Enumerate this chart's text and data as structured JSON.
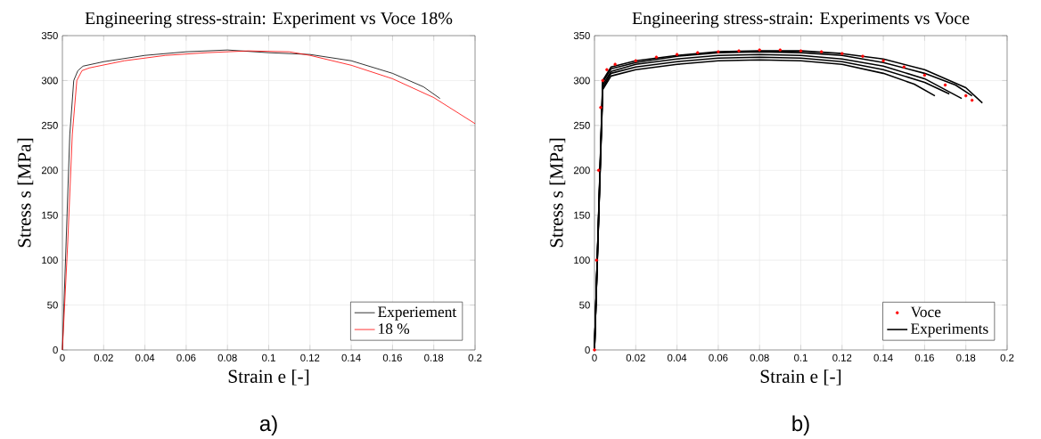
{
  "chart_data": [
    {
      "type": "line",
      "title": "Engineering stress-strain: Experiment vs Voce 18%",
      "xlabel": "Strain e [-]",
      "ylabel": "Stress s [MPa]",
      "xlim": [
        0,
        0.2
      ],
      "ylim": [
        0,
        350
      ],
      "xticks": [
        0,
        0.02,
        0.04,
        0.06,
        0.08,
        0.1,
        0.12,
        0.14,
        0.16,
        0.18,
        0.2
      ],
      "yticks": [
        0,
        50,
        100,
        150,
        200,
        250,
        300,
        350
      ],
      "grid": true,
      "legend": "bottom right",
      "annotations": [
        "a)"
      ],
      "series": [
        {
          "name": "Experiement",
          "color": "#000000",
          "x": [
            0,
            0.0018,
            0.0036,
            0.0055,
            0.0075,
            0.01,
            0.02,
            0.04,
            0.06,
            0.08,
            0.1,
            0.12,
            0.14,
            0.16,
            0.175,
            0.183
          ],
          "values": [
            0,
            120,
            240,
            300,
            311,
            316,
            321,
            328,
            332,
            334,
            331,
            329,
            322,
            308,
            293,
            280
          ]
        },
        {
          "name": "18 %",
          "color": "#ff0000",
          "x": [
            0,
            0.0026,
            0.0048,
            0.007,
            0.0095,
            0.013,
            0.03,
            0.05,
            0.07,
            0.09,
            0.11,
            0.12,
            0.14,
            0.16,
            0.18,
            0.2
          ],
          "values": [
            0,
            120,
            240,
            300,
            311,
            314,
            322,
            328,
            331,
            333,
            332,
            328,
            317,
            302,
            281,
            252
          ]
        }
      ]
    },
    {
      "type": "line",
      "title": "Engineering stress-strain: Experiments vs Voce",
      "xlabel": "Strain e [-]",
      "ylabel": "Stress s [MPa]",
      "xlim": [
        0,
        0.2
      ],
      "ylim": [
        0,
        350
      ],
      "xticks": [
        0,
        0.02,
        0.04,
        0.06,
        0.08,
        0.1,
        0.12,
        0.14,
        0.16,
        0.18,
        0.2
      ],
      "yticks": [
        0,
        50,
        100,
        150,
        200,
        250,
        300,
        350
      ],
      "grid": true,
      "legend": "bottom right",
      "annotations": [
        "b)"
      ],
      "series": [
        {
          "name": "Voce",
          "type": "scatter",
          "color": "#ff0000",
          "x": [
            0,
            0.001,
            0.002,
            0.003,
            0.004,
            0.006,
            0.01,
            0.02,
            0.03,
            0.04,
            0.05,
            0.06,
            0.07,
            0.08,
            0.09,
            0.1,
            0.11,
            0.12,
            0.13,
            0.14,
            0.15,
            0.16,
            0.17,
            0.18,
            0.183
          ],
          "values": [
            0,
            100,
            200,
            270,
            300,
            312,
            318,
            322,
            326,
            329,
            331,
            332,
            333,
            334,
            334,
            333,
            332,
            330,
            327,
            322,
            315,
            306,
            295,
            283,
            278
          ]
        },
        {
          "name": "Experiments",
          "color": "#000000",
          "x": [
            0,
            0.004,
            0.008,
            0.02,
            0.04,
            0.06,
            0.08,
            0.1,
            0.12,
            0.14,
            0.155,
            0.165
          ],
          "values": [
            0,
            290,
            305,
            312,
            318,
            322,
            323,
            322,
            318,
            308,
            296,
            283
          ]
        },
        {
          "color": "#000000",
          "x": [
            0,
            0.004,
            0.008,
            0.02,
            0.04,
            0.06,
            0.08,
            0.1,
            0.12,
            0.14,
            0.16,
            0.172
          ],
          "values": [
            0,
            292,
            308,
            315,
            321,
            325,
            326,
            325,
            321,
            312,
            298,
            285
          ]
        },
        {
          "color": "#000000",
          "x": [
            0,
            0.004,
            0.008,
            0.02,
            0.04,
            0.06,
            0.08,
            0.1,
            0.12,
            0.14,
            0.16,
            0.178
          ],
          "values": [
            0,
            295,
            310,
            318,
            324,
            328,
            329,
            328,
            324,
            316,
            302,
            280
          ]
        },
        {
          "color": "#000000",
          "x": [
            0,
            0.004,
            0.008,
            0.02,
            0.04,
            0.06,
            0.08,
            0.1,
            0.12,
            0.14,
            0.16,
            0.175,
            0.183
          ],
          "values": [
            0,
            298,
            313,
            320,
            327,
            331,
            332,
            331,
            328,
            320,
            308,
            295,
            283
          ]
        },
        {
          "color": "#000000",
          "x": [
            0,
            0.004,
            0.008,
            0.02,
            0.04,
            0.06,
            0.08,
            0.1,
            0.12,
            0.14,
            0.16,
            0.18,
            0.188
          ],
          "values": [
            0,
            300,
            315,
            322,
            328,
            332,
            333,
            333,
            330,
            324,
            312,
            292,
            275
          ]
        }
      ]
    }
  ]
}
